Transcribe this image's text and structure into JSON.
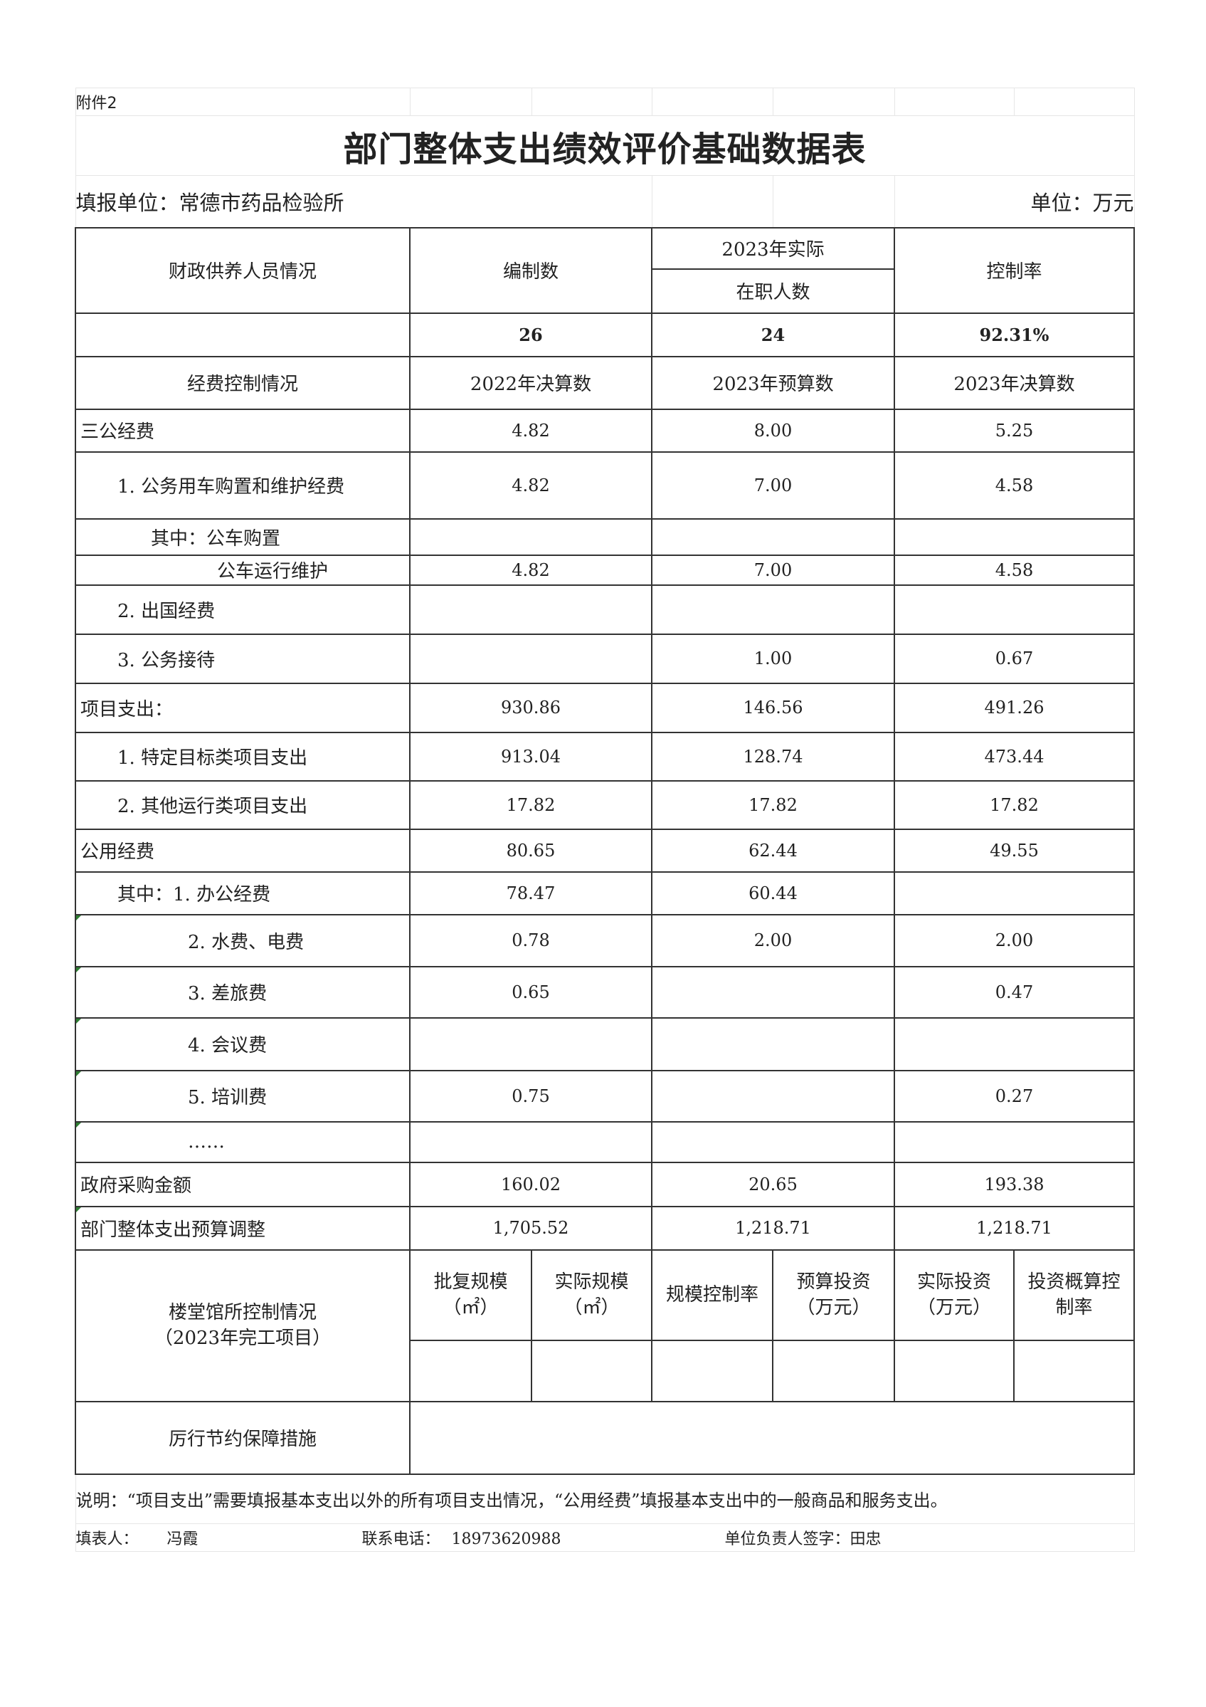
{
  "attachment": "附件2",
  "title": "部门整体支出绩效评价基础数据表",
  "filing_unit": "填报单位：常德市药品检验所",
  "unit": "单位：万元",
  "staff": {
    "label": "财政供养人员情况",
    "col1": "编制数",
    "col2_top": "2023年实际",
    "col2_bottom": "在职人数",
    "col3": "控制率",
    "values": [
      "26",
      "24",
      "92.31%"
    ]
  },
  "expense_header": {
    "label": "经费控制情况",
    "cols": [
      "2022年决算数",
      "2023年预算数",
      "2023年决算数"
    ]
  },
  "expense_rows": [
    {
      "label": "三公经费",
      "values": [
        "4.82",
        "8.00",
        "5.25"
      ]
    },
    {
      "label": "1. 公务用车购置和维护经费",
      "values": [
        "4.82",
        "7.00",
        "4.58"
      ]
    },
    {
      "label": "其中：公车购置",
      "values": [
        "",
        "",
        ""
      ]
    },
    {
      "label": "公车运行维护",
      "values": [
        "4.82",
        "7.00",
        "4.58"
      ]
    },
    {
      "label": "2. 出国经费",
      "values": [
        "",
        "",
        ""
      ]
    },
    {
      "label": "3. 公务接待",
      "values": [
        "",
        "1.00",
        "0.67"
      ]
    },
    {
      "label": "项目支出：",
      "values": [
        "930.86",
        "146.56",
        "491.26"
      ]
    },
    {
      "label": "1. 特定目标类项目支出",
      "values": [
        "913.04",
        "128.74",
        "473.44"
      ]
    },
    {
      "label": "2. 其他运行类项目支出",
      "values": [
        "17.82",
        "17.82",
        "17.82"
      ]
    },
    {
      "label": "公用经费",
      "values": [
        "80.65",
        "62.44",
        "49.55"
      ]
    },
    {
      "label": "其中：1. 办公经费",
      "values": [
        "78.47",
        "60.44",
        ""
      ]
    },
    {
      "label": "2. 水费、电费",
      "values": [
        "0.78",
        "2.00",
        "2.00"
      ]
    },
    {
      "label": "3. 差旅费",
      "values": [
        "0.65",
        "",
        "0.47"
      ]
    },
    {
      "label": "4. 会议费",
      "values": [
        "",
        "",
        ""
      ]
    },
    {
      "label": "5. 培训费",
      "values": [
        "0.75",
        "",
        "0.27"
      ]
    },
    {
      "label": "……",
      "values": [
        "",
        "",
        ""
      ]
    },
    {
      "label": "政府采购金额",
      "values": [
        "160.02",
        "20.65",
        "193.38"
      ]
    },
    {
      "label": "部门整体支出预算调整",
      "values": [
        "1,705.52",
        "1,218.71",
        "1,218.71"
      ]
    }
  ],
  "building": {
    "label_line1": "楼堂馆所控制情况",
    "label_line2": "（2023年完工项目）",
    "cols": [
      {
        "line1": "批复规模",
        "line2": "（㎡）"
      },
      {
        "line1": "实际规模",
        "line2": "（㎡）"
      },
      {
        "line1": "规模控制率",
        "line2": ""
      },
      {
        "line1": "预算投资",
        "line2": "（万元）"
      },
      {
        "line1": "实际投资",
        "line2": "（万元）"
      },
      {
        "line1": "投资概算控",
        "line2": "制率"
      }
    ]
  },
  "austerity": {
    "label": "厉行节约保障措施"
  },
  "note": "说明：“项目支出”需要填报基本支出以外的所有项目支出情况，“公用经费”填报基本支出中的一般商品和服务支出。",
  "footer": {
    "filler_label": "填表人：",
    "filler": "冯霞",
    "phone_label": "联系电话：",
    "phone": "18973620988",
    "head_label": "单位负责人签字：田忠"
  }
}
